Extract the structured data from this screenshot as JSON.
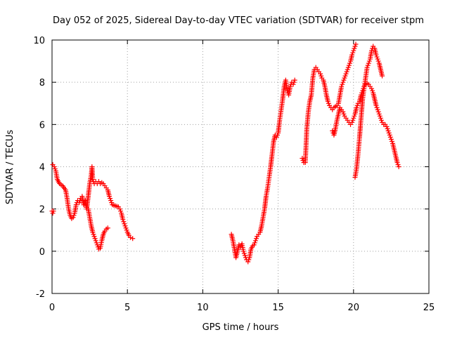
{
  "chart_data": {
    "type": "scatter",
    "title": "Day 052 of 2025, Sidereal Day-to-day VTEC variation (SDTVAR) for receiver stpm",
    "xlabel": "GPS time / hours",
    "ylabel": "SDTVAR / TECUs",
    "xlim": [
      0,
      25
    ],
    "ylim": [
      -2,
      10
    ],
    "xticks": [
      0,
      5,
      10,
      15,
      20,
      25
    ],
    "yticks": [
      -2,
      0,
      2,
      4,
      6,
      8,
      10
    ],
    "grid": true,
    "marker": "+",
    "color": "#ff0000",
    "series": [
      {
        "name": "SDTVAR",
        "segments": [
          {
            "x": [
              0.0,
              0.05,
              0.1
            ],
            "y": [
              1.9,
              1.8,
              1.9
            ]
          },
          {
            "x": [
              0.05,
              0.15,
              0.25,
              0.35,
              0.5,
              0.7,
              0.9,
              1.0,
              1.1,
              1.2,
              1.3,
              1.4,
              1.5,
              1.6,
              1.7,
              1.8,
              1.9,
              2.0,
              2.1,
              2.2,
              2.3,
              2.4,
              2.5,
              2.6,
              2.65,
              2.7,
              2.8,
              2.9,
              3.0,
              3.1,
              3.2,
              3.3,
              3.4,
              3.5,
              3.6,
              3.7,
              3.8,
              3.9,
              4.0,
              4.2,
              4.4,
              4.5,
              4.6,
              4.7,
              4.8,
              4.9,
              5.0,
              5.1,
              5.2,
              5.35
            ],
            "y": [
              4.1,
              4.0,
              3.8,
              3.4,
              3.2,
              3.1,
              2.9,
              2.5,
              2.0,
              1.7,
              1.55,
              1.6,
              1.8,
              2.2,
              2.4,
              2.3,
              2.5,
              2.6,
              2.2,
              2.4,
              2.0,
              2.6,
              3.2,
              3.6,
              4.0,
              3.4,
              3.2,
              3.3,
              3.2,
              3.3,
              3.2,
              3.25,
              3.2,
              3.1,
              3.0,
              2.9,
              2.6,
              2.4,
              2.2,
              2.15,
              2.1,
              2.0,
              1.8,
              1.5,
              1.3,
              1.1,
              0.9,
              0.75,
              0.65,
              0.6
            ]
          },
          {
            "x": [
              2.4,
              2.5,
              2.6,
              2.7,
              2.8,
              2.9,
              3.0,
              3.1,
              3.2,
              3.3,
              3.4,
              3.5,
              3.6,
              3.7
            ],
            "y": [
              2.0,
              1.6,
              1.2,
              0.9,
              0.7,
              0.5,
              0.3,
              0.1,
              0.15,
              0.5,
              0.8,
              0.95,
              1.05,
              1.1
            ]
          },
          {
            "x": [
              11.9,
              12.0,
              12.1,
              12.2,
              12.3,
              12.4,
              12.5,
              12.6,
              12.7,
              12.8,
              12.9,
              13.0,
              13.1,
              13.2,
              13.3,
              13.4,
              13.5,
              13.6,
              13.7,
              13.8,
              13.9,
              14.0,
              14.1,
              14.2,
              14.3,
              14.4,
              14.5,
              14.6,
              14.7,
              14.8,
              14.9,
              15.0,
              15.1,
              15.2,
              15.3,
              15.4,
              15.5,
              15.6,
              15.7,
              15.8,
              15.9,
              16.0,
              16.1
            ],
            "y": [
              0.8,
              0.5,
              0.1,
              -0.3,
              0.0,
              0.3,
              0.2,
              0.35,
              0.0,
              -0.2,
              -0.4,
              -0.5,
              -0.3,
              0.1,
              0.25,
              0.3,
              0.5,
              0.7,
              0.8,
              0.9,
              1.2,
              1.6,
              2.0,
              2.6,
              3.0,
              3.5,
              4.0,
              4.6,
              5.2,
              5.5,
              5.4,
              5.6,
              6.2,
              6.7,
              7.2,
              7.8,
              8.1,
              7.6,
              7.4,
              7.8,
              8.0,
              7.9,
              8.1
            ]
          },
          {
            "x": [
              16.6,
              16.7,
              16.8,
              16.9,
              17.0,
              17.1,
              17.2,
              17.3,
              17.4,
              17.5,
              17.6,
              17.7,
              17.8,
              17.9,
              18.0,
              18.1,
              18.2,
              18.3,
              18.4,
              18.5,
              18.6,
              18.7,
              18.8,
              18.9,
              19.0,
              19.1,
              19.2,
              19.3,
              19.4,
              19.5,
              19.6,
              19.7,
              19.8,
              19.9,
              20.0,
              20.1,
              20.15
            ],
            "y": [
              4.4,
              4.2,
              4.2,
              5.8,
              6.6,
              7.1,
              7.4,
              8.2,
              8.6,
              8.7,
              8.6,
              8.5,
              8.4,
              8.2,
              8.1,
              7.8,
              7.4,
              7.1,
              6.9,
              6.8,
              6.7,
              6.8,
              6.85,
              6.9,
              7.0,
              7.4,
              7.8,
              8.0,
              8.2,
              8.4,
              8.6,
              8.8,
              9.0,
              9.3,
              9.5,
              9.7,
              9.8
            ]
          },
          {
            "x": [
              18.6,
              18.7,
              18.8,
              18.9,
              19.0,
              19.1,
              19.2,
              19.3,
              19.4,
              19.5,
              19.6,
              19.7,
              19.8,
              19.9,
              20.0,
              20.1,
              20.2,
              20.3,
              20.4,
              20.5,
              20.6,
              20.7,
              20.8,
              20.9,
              21.0,
              21.1,
              21.2,
              21.3,
              21.4,
              21.5,
              21.6,
              21.7,
              21.8,
              21.9,
              22.0,
              22.1,
              22.2,
              22.3,
              22.4,
              22.5,
              22.6,
              22.7,
              22.8,
              22.9,
              23.0
            ],
            "y": [
              5.7,
              5.5,
              5.8,
              6.2,
              6.5,
              6.8,
              6.7,
              6.6,
              6.4,
              6.3,
              6.2,
              6.1,
              6.0,
              6.1,
              6.3,
              6.5,
              6.8,
              7.0,
              7.1,
              7.4,
              7.6,
              7.8,
              7.9,
              7.95,
              7.9,
              7.8,
              7.7,
              7.5,
              7.2,
              6.9,
              6.7,
              6.5,
              6.3,
              6.1,
              6.0,
              6.0,
              5.9,
              5.7,
              5.5,
              5.3,
              5.1,
              4.8,
              4.5,
              4.2,
              4.0
            ]
          },
          {
            "x": [
              20.1,
              20.2,
              20.3,
              20.4,
              20.5,
              20.6,
              20.7,
              20.8,
              20.9,
              21.0,
              21.1,
              21.2,
              21.3,
              21.4,
              21.5,
              21.6,
              21.7,
              21.8,
              21.9
            ],
            "y": [
              3.5,
              3.9,
              4.6,
              5.4,
              6.3,
              7.2,
              7.7,
              8.2,
              8.7,
              8.9,
              9.1,
              9.5,
              9.7,
              9.6,
              9.3,
              9.1,
              8.9,
              8.6,
              8.3
            ]
          }
        ]
      }
    ]
  }
}
